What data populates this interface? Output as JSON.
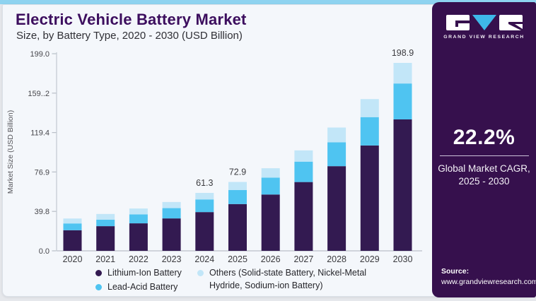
{
  "page": {
    "accent_strip_color": "#8ed3f0",
    "card_bg": "#f4f7fb",
    "sidebar_bg": "#36104d"
  },
  "header": {
    "title": "Electric Vehicle Battery Market",
    "subtitle": "Size, by Battery Type, 2020 - 2030 (USD Billion)"
  },
  "chart_data": {
    "type": "bar",
    "stacked": true,
    "title": "Electric Vehicle Battery Market",
    "subtitle": "Size, by Battery Type, 2020 - 2030 (USD Billion)",
    "ylabel": "Market Size (USD Billion)",
    "xlabel": "",
    "grid": false,
    "legend_position": "bottom",
    "ylim": [
      0,
      199.0
    ],
    "y_ticks_bottom_to_top": [
      "0.0",
      "39.8",
      "76.9",
      "119.4",
      "159..2",
      "199.0"
    ],
    "categories": [
      "2020",
      "2021",
      "2022",
      "2023",
      "2024",
      "2025",
      "2026",
      "2027",
      "2028",
      "2029",
      "2030"
    ],
    "series": [
      {
        "name": "Lithium-Ion Battery",
        "color": "#331a51",
        "values": [
          21.8,
          26.1,
          29.1,
          34.3,
          41.0,
          49.5,
          59.6,
          72.8,
          89.6,
          111.5,
          139.1
        ]
      },
      {
        "name": "Lead-Acid Battery",
        "color": "#4fc4f1",
        "values": [
          7.2,
          6.9,
          9.5,
          10.9,
          13.4,
          14.8,
          17.9,
          21.6,
          25.3,
          30.0,
          38.0
        ]
      },
      {
        "name": "Others (Solid-state Battery, Nickel-Metal Hydride, Sodium-ion Battery)",
        "color": "#c2e6f8",
        "values": [
          5.2,
          6.0,
          6.2,
          6.5,
          6.9,
          8.6,
          9.9,
          11.9,
          15.6,
          19.1,
          21.8
        ]
      }
    ],
    "bar_total_labels": {
      "2024": "61.3",
      "2025": "72.9",
      "2030": "198.9"
    }
  },
  "sidebar": {
    "brand": "GRAND VIEW RESEARCH",
    "logo_triangle_color": "#3eb8e8",
    "cagr": {
      "value": "22.2%",
      "caption_line1": "Global Market CAGR,",
      "caption_line2": "2025 - 2030"
    },
    "source": {
      "label": "Source:",
      "url": "www.grandviewresearch.com"
    }
  }
}
